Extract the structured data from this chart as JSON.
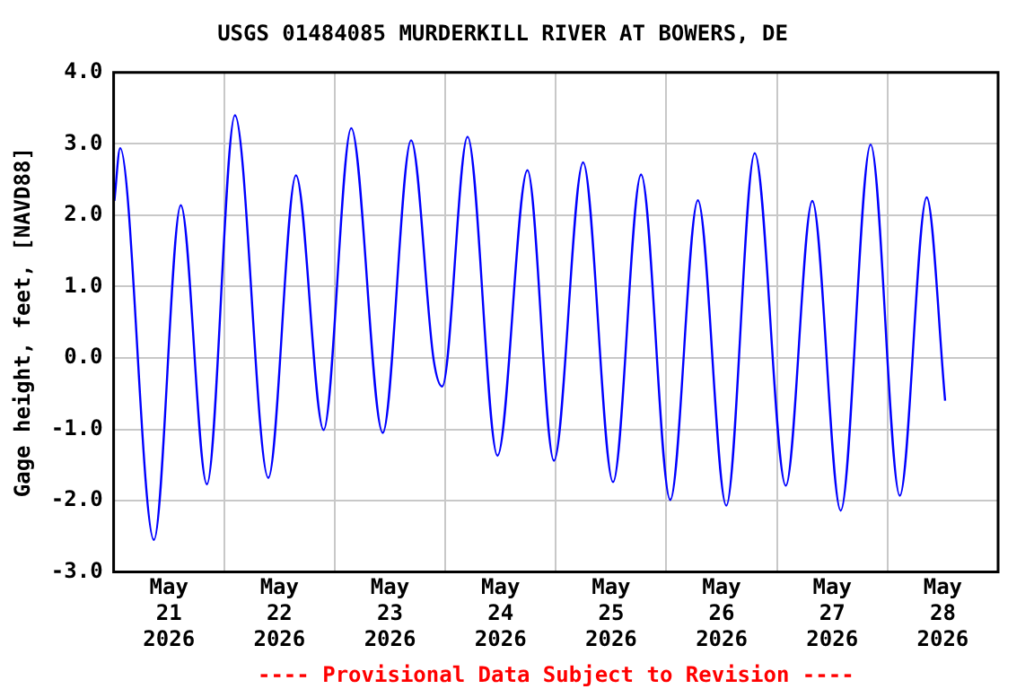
{
  "chart_data": {
    "type": "line",
    "title": "USGS 01484085 MURDERKILL RIVER AT BOWERS, DE",
    "ylabel": "Gage height, feet, [NAVD88]",
    "annotations": [
      "---- Provisional Data Subject to Revision ----"
    ],
    "xlim": [
      "2026-05-21T00:00",
      "2026-05-29T00:00"
    ],
    "xticks": [
      {
        "value": "2026-05-21T12:00",
        "label": "May 21 2026"
      },
      {
        "value": "2026-05-22T00:00",
        "label": null
      },
      {
        "value": "2026-05-22T12:00",
        "label": "May 22 2026"
      },
      {
        "value": "2026-05-23T00:00",
        "label": null
      },
      {
        "value": "2026-05-23T12:00",
        "label": "May 23 2026"
      },
      {
        "value": "2026-05-24T00:00",
        "label": null
      },
      {
        "value": "2026-05-24T12:00",
        "label": "May 24 2026"
      },
      {
        "value": "2026-05-25T00:00",
        "label": null
      },
      {
        "value": "2026-05-25T12:00",
        "label": "May 25 2026"
      },
      {
        "value": "2026-05-26T00:00",
        "label": null
      },
      {
        "value": "2026-05-26T12:00",
        "label": "May 26 2026"
      },
      {
        "value": "2026-05-27T00:00",
        "label": null
      },
      {
        "value": "2026-05-27T12:00",
        "label": "May 27 2026"
      },
      {
        "value": "2026-05-28T00:00",
        "label": null
      },
      {
        "value": "2026-05-28T12:00",
        "label": "May 28 2026"
      }
    ],
    "ylim": [
      -3,
      4
    ],
    "yticks": [
      {
        "value": -3,
        "label": "-3.0"
      },
      {
        "value": -2,
        "label": "-2.0"
      },
      {
        "value": -1,
        "label": "-1.0"
      },
      {
        "value": 0,
        "label": "0.0"
      },
      {
        "value": 1,
        "label": "1.0"
      },
      {
        "value": 2,
        "label": "2.0"
      },
      {
        "value": 3,
        "label": "3.0"
      },
      {
        "value": 4,
        "label": "4.0"
      }
    ],
    "grid": true,
    "legend": false,
    "marker": "none",
    "line_style": "solid",
    "series": [
      {
        "color": "#0000ff",
        "x": [
          "2026-05-21T00:10",
          "2026-05-21T01:25",
          "2026-05-21T08:45",
          "2026-05-21T14:35",
          "2026-05-21T20:15",
          "2026-05-22T02:20",
          "2026-05-22T09:35",
          "2026-05-22T15:35",
          "2026-05-22T21:35",
          "2026-05-23T03:35",
          "2026-05-23T10:25",
          "2026-05-23T16:35",
          "2026-05-23T21:30",
          "2026-05-23T23:20",
          "2026-05-24T04:50",
          "2026-05-24T11:20",
          "2026-05-24T17:50",
          "2026-05-24T23:35",
          "2026-05-25T05:55",
          "2026-05-25T12:25",
          "2026-05-25T18:30",
          "2026-05-26T00:50",
          "2026-05-26T06:50",
          "2026-05-26T13:00",
          "2026-05-26T19:10",
          "2026-05-27T01:55",
          "2026-05-27T07:40",
          "2026-05-27T13:50",
          "2026-05-27T20:20",
          "2026-05-28T02:40",
          "2026-05-28T08:30",
          "2026-05-28T12:30"
        ],
        "values": [
          2.2,
          2.94,
          -2.55,
          2.14,
          -1.77,
          3.4,
          -1.68,
          2.56,
          -1.01,
          3.22,
          -1.05,
          3.05,
          -0.04,
          -0.4,
          3.1,
          -1.37,
          2.63,
          -1.44,
          2.74,
          -1.74,
          2.57,
          -1.99,
          2.21,
          -2.07,
          2.87,
          -1.79,
          2.2,
          -2.14,
          2.99,
          -1.93,
          2.25,
          -0.6
        ]
      }
    ]
  }
}
